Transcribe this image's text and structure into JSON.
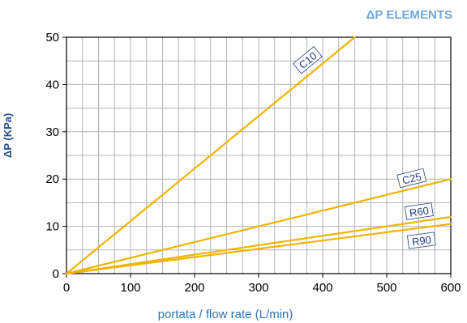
{
  "chart_data": {
    "type": "line",
    "title": "ΔP ELEMENTS",
    "xlabel": "portata / flow rate (L/min)",
    "ylabel": "ΔP (KPa)",
    "xlim": [
      0,
      600
    ],
    "ylim": [
      0,
      50
    ],
    "x_ticks": [
      0,
      100,
      200,
      300,
      400,
      500,
      600
    ],
    "y_ticks": [
      0,
      10,
      20,
      30,
      40,
      50
    ],
    "grid": true,
    "line_color": "#f0b400",
    "label_color": "#1f3f7f",
    "series": [
      {
        "name": "C10",
        "points": [
          [
            0,
            0
          ],
          [
            450,
            50
          ]
        ]
      },
      {
        "name": "C25",
        "points": [
          [
            0,
            0
          ],
          [
            600,
            20
          ]
        ]
      },
      {
        "name": "R60",
        "points": [
          [
            0,
            0
          ],
          [
            600,
            12
          ]
        ]
      },
      {
        "name": "R90",
        "points": [
          [
            0,
            0
          ],
          [
            600,
            10.5
          ]
        ]
      }
    ]
  }
}
